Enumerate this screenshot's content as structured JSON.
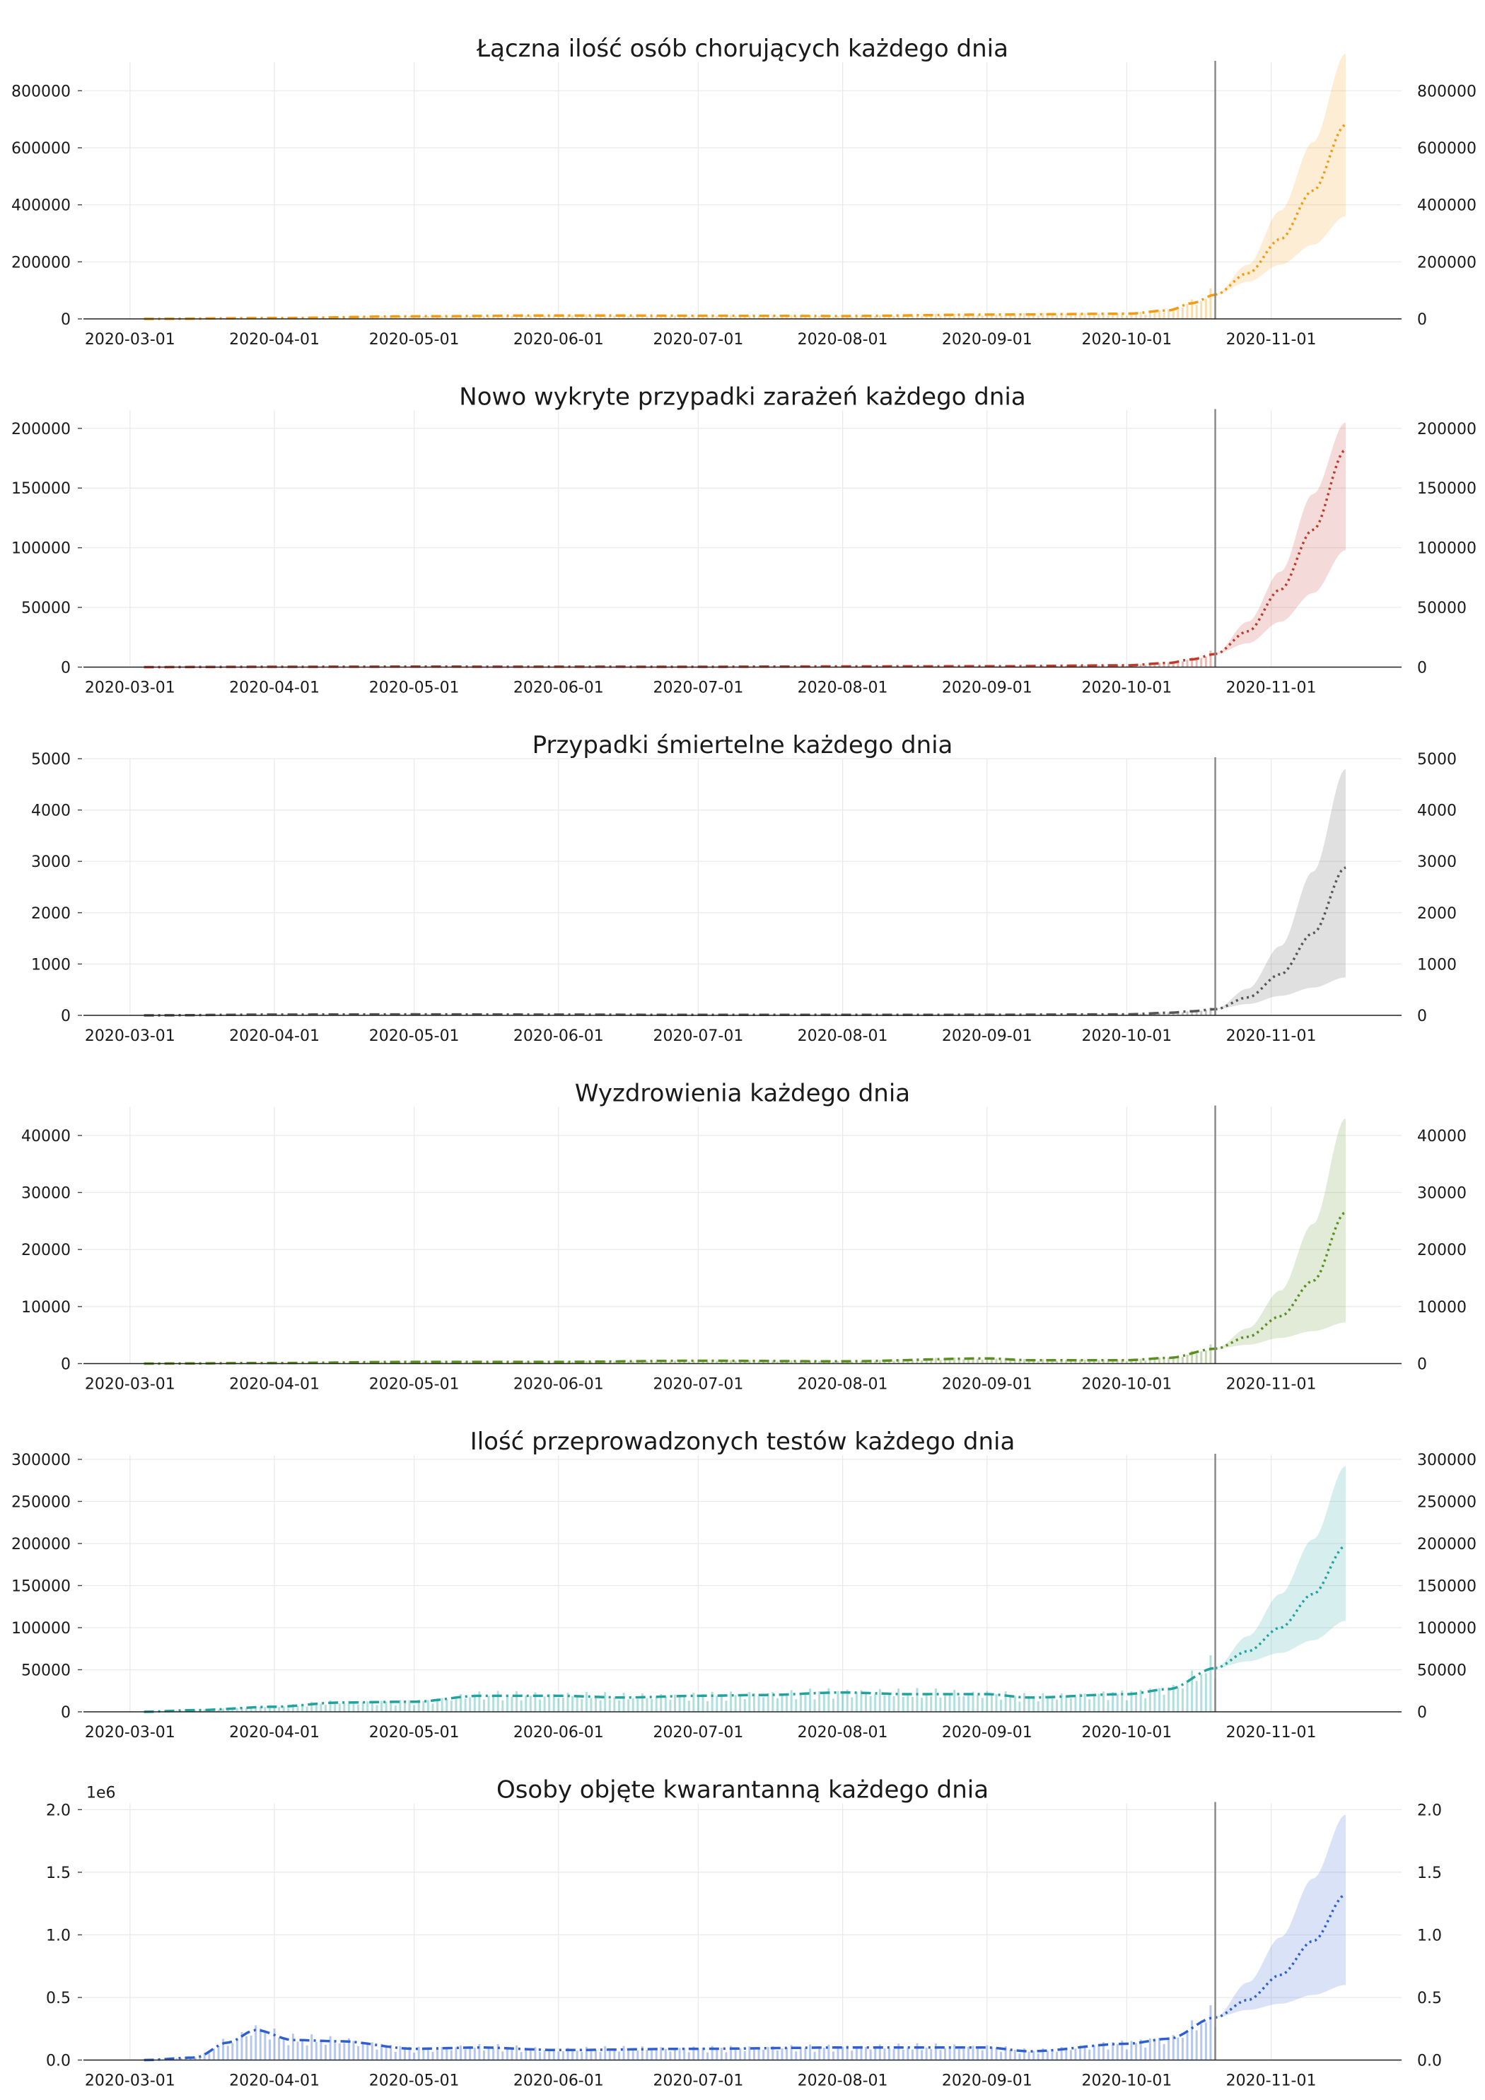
{
  "x_tick_labels": [
    "2020-03-01",
    "2020-04-01",
    "2020-05-01",
    "2020-06-01",
    "2020-07-01",
    "2020-08-01",
    "2020-09-01",
    "2020-10-01",
    "2020-11-01"
  ],
  "chart_data": [
    {
      "type": "line",
      "title": "Łączna ilość osób chorujących każdego dnia",
      "color": "#f39c12",
      "ylim": [
        0,
        900000
      ],
      "y_ticks": [
        0,
        200000,
        400000,
        600000,
        800000
      ],
      "y_tick_labels": [
        "0",
        "200000",
        "400000",
        "600000",
        "800000"
      ],
      "y_offset_label": "",
      "history": {
        "x": [
          "2020-03-04",
          "2020-04-01",
          "2020-05-01",
          "2020-06-01",
          "2020-07-01",
          "2020-08-01",
          "2020-09-01",
          "2020-10-01",
          "2020-10-10",
          "2020-10-15",
          "2020-10-20"
        ],
        "y": [
          0,
          3000,
          9000,
          12000,
          11000,
          10000,
          15000,
          18000,
          30000,
          55000,
          85000
        ]
      },
      "forecast": {
        "x": [
          "2020-10-20",
          "2020-10-27",
          "2020-11-03",
          "2020-11-10",
          "2020-11-17"
        ],
        "y": [
          85000,
          160000,
          280000,
          450000,
          680000
        ],
        "lower": [
          85000,
          130000,
          190000,
          260000,
          360000
        ],
        "upper": [
          85000,
          190000,
          380000,
          620000,
          930000
        ]
      },
      "forecast_start": "2020-10-20"
    },
    {
      "type": "line",
      "title": "Nowo wykryte przypadki zarażeń każdego dnia",
      "color": "#c0392b",
      "ylim": [
        0,
        215000
      ],
      "y_ticks": [
        0,
        50000,
        100000,
        150000,
        200000
      ],
      "y_tick_labels": [
        "0",
        "50000",
        "100000",
        "150000",
        "200000"
      ],
      "y_offset_label": "",
      "history": {
        "x": [
          "2020-03-04",
          "2020-04-01",
          "2020-05-01",
          "2020-06-01",
          "2020-07-01",
          "2020-08-01",
          "2020-09-01",
          "2020-10-01",
          "2020-10-10",
          "2020-10-15",
          "2020-10-20"
        ],
        "y": [
          0,
          300,
          400,
          350,
          300,
          600,
          700,
          1500,
          3500,
          6500,
          11000
        ]
      },
      "forecast": {
        "x": [
          "2020-10-20",
          "2020-10-27",
          "2020-11-03",
          "2020-11-10",
          "2020-11-17"
        ],
        "y": [
          11000,
          30000,
          65000,
          115000,
          182000
        ],
        "lower": [
          11000,
          20000,
          38000,
          62000,
          98000
        ],
        "upper": [
          11000,
          38000,
          80000,
          145000,
          205000
        ]
      },
      "forecast_start": "2020-10-20"
    },
    {
      "type": "line",
      "title": "Przypadki śmiertelne każdego dnia",
      "color": "#555555",
      "ylim": [
        0,
        5000
      ],
      "y_ticks": [
        0,
        1000,
        2000,
        3000,
        4000,
        5000
      ],
      "y_tick_labels": [
        "0",
        "1000",
        "2000",
        "3000",
        "4000",
        "5000"
      ],
      "y_offset_label": "",
      "history": {
        "x": [
          "2020-03-04",
          "2020-04-01",
          "2020-05-01",
          "2020-06-01",
          "2020-07-01",
          "2020-08-01",
          "2020-09-01",
          "2020-10-01",
          "2020-10-10",
          "2020-10-15",
          "2020-10-20"
        ],
        "y": [
          0,
          15,
          20,
          15,
          10,
          10,
          12,
          20,
          50,
          80,
          120
        ]
      },
      "forecast": {
        "x": [
          "2020-10-20",
          "2020-10-27",
          "2020-11-03",
          "2020-11-10",
          "2020-11-17"
        ],
        "y": [
          120,
          350,
          800,
          1600,
          2880
        ],
        "lower": [
          120,
          220,
          380,
          540,
          740
        ],
        "upper": [
          120,
          520,
          1350,
          2800,
          4800
        ]
      },
      "forecast_start": "2020-10-20"
    },
    {
      "type": "line",
      "title": "Wyzdrowienia każdego dnia",
      "color": "#5a8f1f",
      "ylim": [
        0,
        45000
      ],
      "y_ticks": [
        0,
        10000,
        20000,
        30000,
        40000
      ],
      "y_tick_labels": [
        "0",
        "10000",
        "20000",
        "30000",
        "40000"
      ],
      "y_offset_label": "",
      "history": {
        "x": [
          "2020-03-04",
          "2020-04-01",
          "2020-05-01",
          "2020-06-01",
          "2020-07-01",
          "2020-08-01",
          "2020-09-01",
          "2020-09-10",
          "2020-10-01",
          "2020-10-10",
          "2020-10-20"
        ],
        "y": [
          0,
          100,
          300,
          300,
          500,
          400,
          900,
          600,
          600,
          1000,
          2600
        ]
      },
      "forecast": {
        "x": [
          "2020-10-20",
          "2020-10-27",
          "2020-11-03",
          "2020-11-10",
          "2020-11-17"
        ],
        "y": [
          2600,
          4700,
          8300,
          14500,
          26500
        ],
        "lower": [
          2600,
          3300,
          4500,
          5700,
          7200
        ],
        "upper": [
          2600,
          6200,
          12800,
          24500,
          43000
        ]
      },
      "forecast_start": "2020-10-20"
    },
    {
      "type": "line",
      "title": "Ilość przeprowadzonych testów każdego dnia",
      "color": "#20a39e",
      "ylim": [
        0,
        305000
      ],
      "y_ticks": [
        0,
        50000,
        100000,
        150000,
        200000,
        250000,
        300000
      ],
      "y_tick_labels": [
        "0",
        "50000",
        "100000",
        "150000",
        "200000",
        "250000",
        "300000"
      ],
      "y_offset_label": "",
      "history": {
        "x": [
          "2020-03-04",
          "2020-03-15",
          "2020-04-01",
          "2020-04-15",
          "2020-05-01",
          "2020-05-15",
          "2020-06-01",
          "2020-06-15",
          "2020-07-01",
          "2020-07-15",
          "2020-08-01",
          "2020-08-15",
          "2020-09-01",
          "2020-09-10",
          "2020-10-01",
          "2020-10-10",
          "2020-10-20"
        ],
        "y": [
          0,
          2000,
          6000,
          11000,
          12000,
          19000,
          19000,
          17000,
          19000,
          20000,
          23000,
          21000,
          21000,
          17000,
          21000,
          27000,
          52000
        ]
      },
      "forecast": {
        "x": [
          "2020-10-20",
          "2020-10-27",
          "2020-11-03",
          "2020-11-10",
          "2020-11-17"
        ],
        "y": [
          52000,
          72000,
          100000,
          140000,
          197000
        ],
        "lower": [
          52000,
          60000,
          70000,
          85000,
          108000
        ],
        "upper": [
          52000,
          90000,
          140000,
          205000,
          292000
        ]
      },
      "forecast_start": "2020-10-20"
    },
    {
      "type": "line",
      "title": "Osoby objęte kwarantanną każdego dnia",
      "color": "#2e5fd0",
      "ylim": [
        0,
        2.05
      ],
      "y_ticks": [
        0,
        0.5,
        1.0,
        1.5,
        2.0
      ],
      "y_tick_labels": [
        "0.0",
        "0.5",
        "1.0",
        "1.5",
        "2.0"
      ],
      "y_offset_label": "1e6",
      "history": {
        "x": [
          "2020-03-04",
          "2020-03-15",
          "2020-03-22",
          "2020-03-28",
          "2020-04-05",
          "2020-04-15",
          "2020-05-01",
          "2020-05-15",
          "2020-06-01",
          "2020-07-01",
          "2020-08-01",
          "2020-09-01",
          "2020-09-10",
          "2020-10-01",
          "2020-10-10",
          "2020-10-20"
        ],
        "y": [
          0,
          0.02,
          0.14,
          0.24,
          0.16,
          0.15,
          0.09,
          0.1,
          0.08,
          0.09,
          0.1,
          0.1,
          0.07,
          0.13,
          0.17,
          0.34
        ]
      },
      "forecast": {
        "x": [
          "2020-10-20",
          "2020-10-27",
          "2020-11-03",
          "2020-11-10",
          "2020-11-17"
        ],
        "y": [
          0.34,
          0.48,
          0.68,
          0.95,
          1.32
        ],
        "lower": [
          0.34,
          0.4,
          0.45,
          0.52,
          0.6
        ],
        "upper": [
          0.34,
          0.62,
          0.98,
          1.45,
          1.96
        ]
      },
      "forecast_start": "2020-10-20"
    }
  ]
}
